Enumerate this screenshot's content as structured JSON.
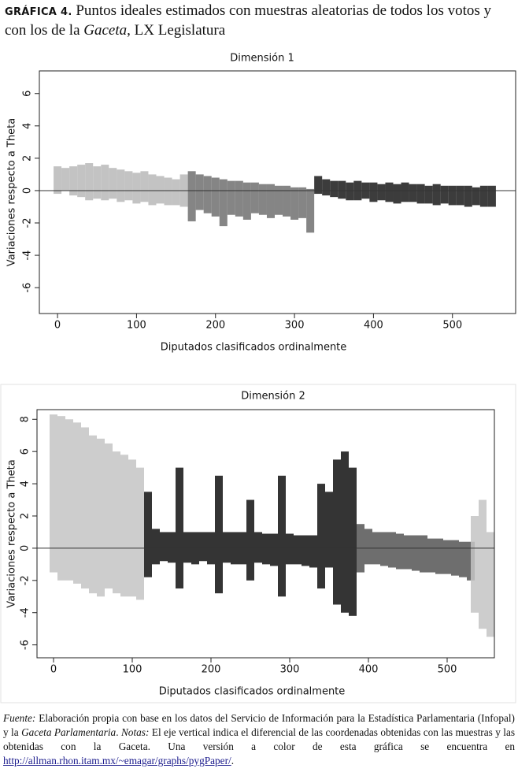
{
  "header": {
    "figure_label": "GRÁFICA 4.",
    "title_before": "Puntos ideales estimados con muestras aleatorias de todos los votos y con los de la ",
    "title_italic": "Gaceta",
    "title_after": ", LX Legislatura"
  },
  "chart_data": [
    {
      "type": "range",
      "title": "Dimensión 1",
      "x_label": "Diputados clasificados ordinalmente",
      "y_label": "Variaciones respecto a Theta",
      "xlim": [
        -23,
        580
      ],
      "ylim": [
        -7.6,
        7.4
      ],
      "xticks": [
        0,
        100,
        200,
        300,
        400,
        500
      ],
      "yticks": [
        -6,
        -4,
        -2,
        0,
        2,
        4,
        6
      ],
      "reference_line": 0,
      "series": [
        {
          "color": "#b8b8b8",
          "x": [
            0,
            10,
            20,
            30,
            40,
            50,
            60,
            70,
            80,
            90,
            100,
            110,
            120,
            130,
            140,
            150,
            160
          ],
          "low": [
            -0.2,
            0,
            -0.3,
            -0.4,
            -0.6,
            -0.5,
            -0.6,
            -0.5,
            -0.7,
            -0.6,
            -0.8,
            -0.7,
            -0.9,
            -0.8,
            -0.9,
            -0.9,
            -1.0
          ],
          "high": [
            1.5,
            1.4,
            1.5,
            1.6,
            1.7,
            1.5,
            1.6,
            1.4,
            1.3,
            1.2,
            1.1,
            1.2,
            1.0,
            0.9,
            0.8,
            0.7,
            1.0
          ]
        },
        {
          "color": "#707070",
          "x": [
            170,
            180,
            190,
            200,
            210,
            220,
            230,
            240,
            250,
            260,
            270,
            280,
            290,
            300,
            310,
            320
          ],
          "low": [
            -1.9,
            -1.2,
            -1.4,
            -1.6,
            -2.2,
            -1.5,
            -1.6,
            -1.8,
            -1.4,
            -1.5,
            -1.7,
            -1.5,
            -1.6,
            -1.8,
            -1.7,
            -2.6
          ],
          "high": [
            1.2,
            1.0,
            0.9,
            0.8,
            0.7,
            0.6,
            0.6,
            0.5,
            0.5,
            0.4,
            0.4,
            0.3,
            0.3,
            0.2,
            0.2,
            0.1
          ]
        },
        {
          "color": "#1a1a1a",
          "x": [
            330,
            340,
            350,
            360,
            370,
            380,
            390,
            400,
            410,
            420,
            430,
            440,
            450,
            460,
            470,
            480,
            490,
            500,
            510,
            520,
            530,
            540,
            550
          ],
          "low": [
            -0.2,
            -0.3,
            -0.4,
            -0.5,
            -0.6,
            -0.6,
            -0.5,
            -0.7,
            -0.6,
            -0.7,
            -0.8,
            -0.7,
            -0.7,
            -0.8,
            -0.8,
            -0.9,
            -0.8,
            -0.9,
            -0.9,
            -1.0,
            -0.9,
            -1.0,
            -1.0
          ],
          "high": [
            0.9,
            0.7,
            0.6,
            0.6,
            0.5,
            0.6,
            0.5,
            0.5,
            0.4,
            0.5,
            0.4,
            0.5,
            0.4,
            0.4,
            0.3,
            0.4,
            0.3,
            0.3,
            0.3,
            0.3,
            0.2,
            0.3,
            0.3
          ]
        }
      ]
    },
    {
      "type": "range",
      "title": "Dimensión 2",
      "x_label": "Diputados clasificados ordinalmente",
      "y_label": "Variaciones respecto a Theta",
      "xlim": [
        -21,
        560
      ],
      "ylim": [
        -6.8,
        8.6
      ],
      "xticks": [
        0,
        100,
        200,
        300,
        400,
        500
      ],
      "yticks": [
        -6,
        -4,
        -2,
        0,
        2,
        4,
        6,
        8
      ],
      "reference_line": 0,
      "series": [
        {
          "color": "#c4c4c4",
          "x": [
            0,
            10,
            20,
            30,
            40,
            50,
            60,
            70,
            80,
            90,
            100,
            110
          ],
          "low": [
            -1.5,
            -2,
            -2,
            -2.2,
            -2.5,
            -2.8,
            -3,
            -2.5,
            -2.8,
            -3,
            -3,
            -3.2
          ],
          "high": [
            8.3,
            8.2,
            8,
            7.8,
            7.5,
            7,
            6.8,
            6.5,
            6,
            5.8,
            5.5,
            5
          ]
        },
        {
          "color": "#111111",
          "x": [
            120,
            130,
            140,
            150,
            160,
            170,
            180,
            190,
            200,
            210,
            220,
            230,
            240,
            250,
            260,
            270,
            280,
            290,
            300,
            310,
            320,
            330,
            340,
            350,
            360,
            370,
            380
          ],
          "low": [
            -1.8,
            -1,
            -0.8,
            -0.9,
            -2.5,
            -0.9,
            -1,
            -0.8,
            -1,
            -2.8,
            -0.9,
            -1,
            -1,
            -2,
            -0.9,
            -1,
            -1.1,
            -3,
            -1,
            -1,
            -1.1,
            -1.2,
            -2.5,
            -1.2,
            -3.5,
            -4,
            -4.2
          ],
          "high": [
            3.5,
            1.2,
            1,
            1,
            5,
            1,
            1,
            1,
            1,
            4.5,
            1,
            1,
            1,
            3,
            1,
            0.9,
            0.9,
            4.5,
            0.9,
            0.8,
            0.8,
            0.8,
            4,
            3.5,
            5.5,
            6,
            5
          ]
        },
        {
          "color": "#555555",
          "x": [
            390,
            400,
            410,
            420,
            430,
            440,
            450,
            460,
            470,
            480,
            490,
            500,
            510,
            520,
            530
          ],
          "low": [
            -1.5,
            -1,
            -1,
            -1.1,
            -1.2,
            -1.3,
            -1.3,
            -1.4,
            -1.5,
            -1.5,
            -1.6,
            -1.6,
            -1.7,
            -1.8,
            -2
          ],
          "high": [
            1.5,
            1.2,
            1,
            1,
            1,
            0.9,
            0.8,
            0.8,
            0.8,
            0.6,
            0.6,
            0.5,
            0.5,
            0.4,
            0.4
          ]
        },
        {
          "color": "#c4c4c4",
          "x": [
            535,
            545,
            555
          ],
          "low": [
            -4,
            -5,
            -5.5
          ],
          "high": [
            2,
            3,
            1
          ]
        }
      ]
    }
  ],
  "footer": {
    "source_label": "Fuente:",
    "source_text": "Elaboración propia con base en los datos del Servicio de Información para la Estadística Parlamentaria (Infopal) y la",
    "source_italic": "Gaceta Parlamentaria",
    "separator": ".",
    "notes_label": "Notas:",
    "notes_text": "El eje vertical indica el diferencial de las coordenadas obtenidas con las muestras y las obtenidas con la Gaceta. Una versión a color de esta gráfica se encuentra en",
    "link": "http://allman.rhon.itam.mx/~emagar/graphs/pygPaper/",
    "end": "."
  }
}
